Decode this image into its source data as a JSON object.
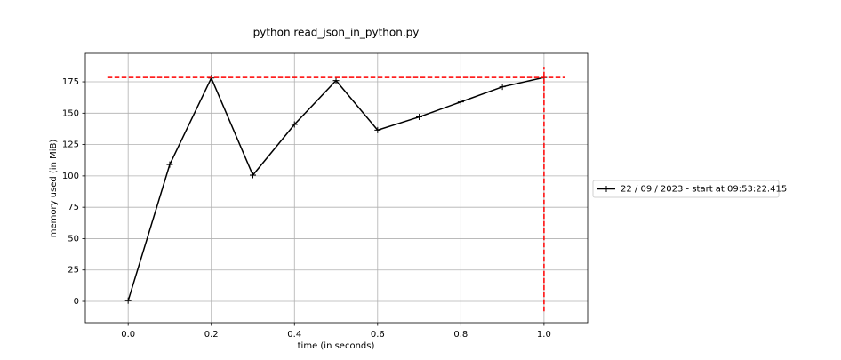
{
  "chart_data": {
    "type": "line",
    "title": "python read_json_in_python.py",
    "x_label": "time (in seconds)",
    "y_label": "memory used (in MiB)",
    "x": [
      0.0,
      0.1,
      0.2,
      0.3,
      0.4,
      0.5,
      0.6,
      0.7,
      0.8,
      0.9,
      1.0
    ],
    "series": [
      {
        "name": "22 / 09 / 2023 - start at 09:53:22.415",
        "color": "#000000",
        "values": [
          0.5,
          109,
          178,
          100.6,
          141,
          176,
          136.5,
          147,
          159,
          171,
          178.5
        ]
      }
    ],
    "reference_lines": [
      {
        "orientation": "horizontal",
        "y": 178.5,
        "x": [
          -0.05,
          1.05
        ],
        "color": "#ff0000"
      },
      {
        "orientation": "vertical",
        "x": 1.0,
        "y": [
          -8,
          187
        ],
        "color": "#ff0000"
      }
    ],
    "xlim": [
      -0.103,
      1.105
    ],
    "ylim": [
      -17,
      197.7
    ],
    "xticks": [
      {
        "value": 0,
        "label": "0.0"
      },
      0.2,
      0.4,
      0.6,
      0.8,
      {
        "value": 1,
        "label": "1.0"
      }
    ],
    "yticks": [
      0,
      25,
      50,
      75,
      100,
      125,
      150,
      175
    ],
    "grid": true,
    "legend": "outside right"
  }
}
